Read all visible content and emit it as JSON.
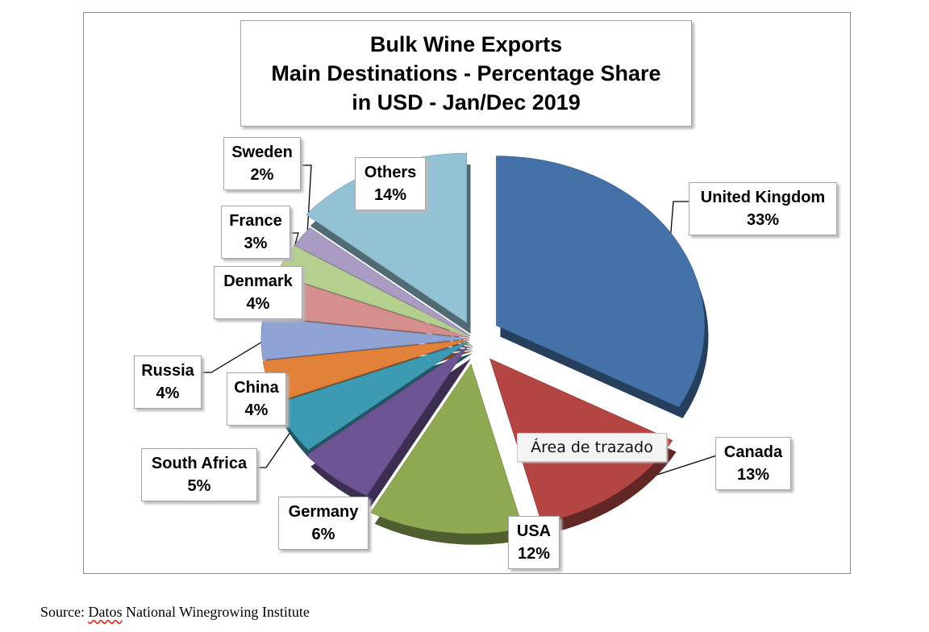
{
  "chart_data": {
    "type": "pie",
    "title_lines": [
      "Bulk Wine Exports",
      "Main Destinations - Percentage Share",
      "in USD - Jan/Dec 2019"
    ],
    "unit": "%",
    "slices": [
      {
        "name": "United Kingdom",
        "value": 33,
        "label": "33%",
        "color": "#4472a8"
      },
      {
        "name": "Canada",
        "value": 13,
        "label": "13%",
        "color": "#b34543"
      },
      {
        "name": "USA",
        "value": 12,
        "label": "12%",
        "color": "#8faa53"
      },
      {
        "name": "Germany",
        "value": 6,
        "label": "6%",
        "color": "#6d5494"
      },
      {
        "name": "South Africa",
        "value": 5,
        "label": "5%",
        "color": "#3d9ab3"
      },
      {
        "name": "China",
        "value": 4,
        "label": "4%",
        "color": "#e2813a"
      },
      {
        "name": "Russia",
        "value": 4,
        "label": "4%",
        "color": "#8fa4d4"
      },
      {
        "name": "Denmark",
        "value": 4,
        "label": "4%",
        "color": "#d48f8e"
      },
      {
        "name": "France",
        "value": 3,
        "label": "3%",
        "color": "#b5cf8f"
      },
      {
        "name": "Sweden",
        "value": 2,
        "label": "2%",
        "color": "#a99bc4"
      },
      {
        "name": "Others",
        "value": 14,
        "label": "14%",
        "color": "#93c2d5"
      }
    ],
    "legend": "none",
    "tooltip": "Área de trazado"
  },
  "source": {
    "prefix": "Source: ",
    "squiggle": "Datos",
    "rest": " National Winegrowing Institute"
  }
}
